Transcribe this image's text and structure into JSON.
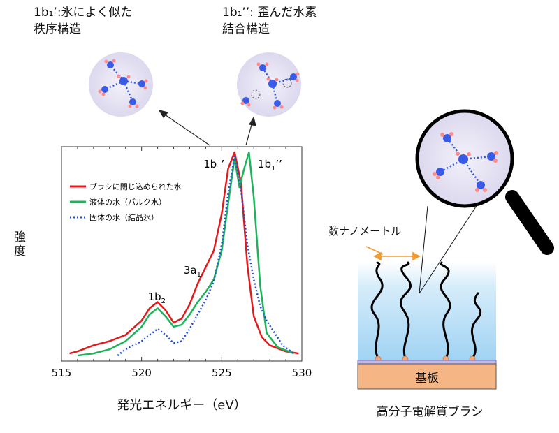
{
  "annotations": {
    "left_caption": [
      "1b₁’:氷によく似た",
      "秩序構造"
    ],
    "right_caption": [
      "1b₁’’: 歪んだ水素",
      "結合構造"
    ]
  },
  "chart_data": {
    "type": "line",
    "title": "",
    "xlabel": "発光エネルギー（eV）",
    "ylabel": "強度",
    "xlim": [
      515,
      530
    ],
    "xticks": [
      515,
      520,
      525,
      530
    ],
    "xtick_labels": [
      "515",
      "520",
      "525",
      "530"
    ],
    "grid": false,
    "legend": "top-left",
    "peak_labels": [
      {
        "id": "1b2",
        "label": "1b",
        "sub": "2",
        "x": 521.0
      },
      {
        "id": "3a1",
        "label": "3a",
        "sub": "1",
        "x": 523.8
      },
      {
        "id": "1b1p",
        "label": "1b",
        "sub": "1",
        "suffix": "’",
        "x": 525.6
      },
      {
        "id": "1b1pp",
        "label": "1b",
        "sub": "1",
        "suffix": "’’",
        "x": 526.9
      }
    ],
    "series": [
      {
        "name": "ブラシに閉じ込められた水",
        "color": "#e31a1c",
        "style": "solid",
        "x": [
          515.5,
          516,
          517,
          518,
          519,
          520,
          520.5,
          521,
          521.5,
          522,
          522.5,
          523,
          523.5,
          524,
          524.5,
          525,
          525.4,
          525.8,
          526.2,
          526.6,
          527,
          527.5,
          528,
          529,
          529.8
        ],
        "y": [
          0.02,
          0.03,
          0.06,
          0.08,
          0.11,
          0.18,
          0.24,
          0.27,
          0.23,
          0.17,
          0.19,
          0.26,
          0.36,
          0.44,
          0.52,
          0.7,
          0.92,
          1.0,
          0.85,
          0.45,
          0.2,
          0.1,
          0.06,
          0.03,
          0.02
        ]
      },
      {
        "name": "液体の水（バルク水）",
        "color": "#1db35a",
        "style": "solid",
        "x": [
          516,
          517,
          518,
          519,
          520,
          520.5,
          521,
          521.5,
          522,
          522.5,
          523,
          523.5,
          524,
          524.5,
          525,
          525.4,
          525.8,
          526.1,
          526.4,
          526.7,
          527,
          527.4,
          527.8,
          528.5,
          529.5
        ],
        "y": [
          0.01,
          0.02,
          0.04,
          0.08,
          0.15,
          0.21,
          0.24,
          0.2,
          0.15,
          0.16,
          0.21,
          0.27,
          0.32,
          0.38,
          0.52,
          0.75,
          0.97,
          0.83,
          0.92,
          1.0,
          0.78,
          0.35,
          0.12,
          0.05,
          0.02
        ]
      },
      {
        "name": "固体の水（結晶氷）",
        "color": "#1f4fd8",
        "style": "dotted",
        "x": [
          518.5,
          519,
          520,
          520.5,
          521,
          521.5,
          522,
          522.5,
          523,
          523.5,
          524,
          524.5,
          525,
          525.4,
          525.8,
          526.2,
          526.6,
          527,
          527.4,
          527.8,
          528.3,
          528.8,
          529.5
        ],
        "y": [
          0.01,
          0.04,
          0.08,
          0.11,
          0.14,
          0.11,
          0.07,
          0.08,
          0.14,
          0.21,
          0.28,
          0.37,
          0.55,
          0.8,
          0.98,
          0.82,
          0.55,
          0.38,
          0.25,
          0.18,
          0.12,
          0.06,
          0.02
        ]
      }
    ]
  },
  "schematic": {
    "scale_label": "数ナノメートル",
    "substrate_label": "基板",
    "caption": "高分子電解質ブラシ"
  }
}
